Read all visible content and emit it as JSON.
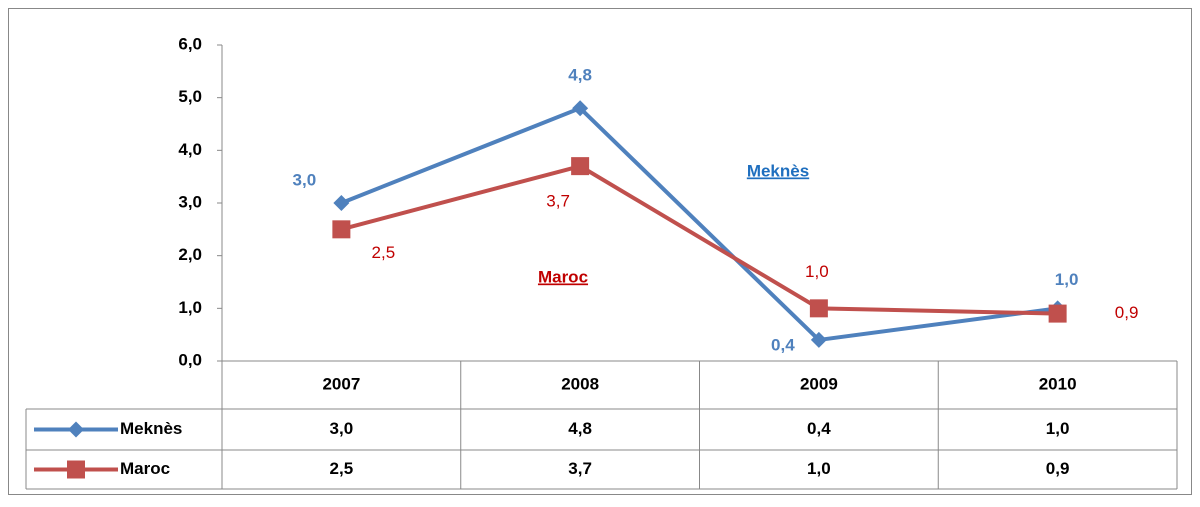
{
  "chart_data": {
    "type": "line",
    "categories": [
      "2007",
      "2008",
      "2009",
      "2010"
    ],
    "series": [
      {
        "name": "Meknès",
        "color": "#4f81bd",
        "marker": "diamond",
        "values": [
          3.0,
          4.8,
          0.4,
          1.0
        ],
        "value_labels": [
          "3,0",
          "4,8",
          "0,4",
          "1,0"
        ]
      },
      {
        "name": "Maroc",
        "color": "#c0504d",
        "marker": "square",
        "values": [
          2.5,
          3.7,
          1.0,
          0.9
        ],
        "value_labels": [
          "2,5",
          "3,7",
          "1,0",
          "0,9"
        ]
      }
    ],
    "ylim": [
      0,
      6
    ],
    "yticks": [
      {
        "value": 0,
        "label": "0,0"
      },
      {
        "value": 1,
        "label": "1,0"
      },
      {
        "value": 2,
        "label": "2,0"
      },
      {
        "value": 3,
        "label": "3,0"
      },
      {
        "value": 4,
        "label": "4,0"
      },
      {
        "value": 5,
        "label": "5,0"
      },
      {
        "value": 6,
        "label": "6,0"
      }
    ],
    "grid": false,
    "data_table": true
  }
}
